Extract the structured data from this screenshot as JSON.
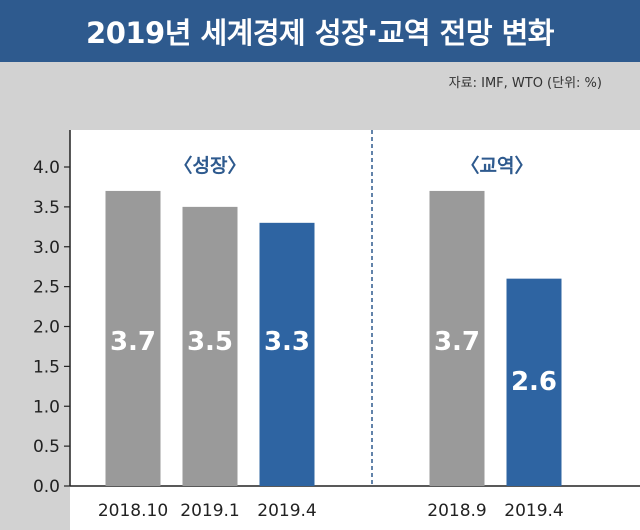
{
  "header": {
    "title": "2019년 세계경제 성장·교역 전망 변화"
  },
  "source": "자료: IMF, WTO (단위: %)",
  "chart_data": {
    "type": "bar",
    "ylim": [
      0,
      4.0
    ],
    "yticks": [
      "0.0",
      "0.5",
      "1.0",
      "1.5",
      "2.0",
      "2.5",
      "3.0",
      "3.5",
      "4.0"
    ],
    "grid": false,
    "groups": [
      {
        "label": "〈성장〉",
        "categories": [
          "2018.10",
          "2019.1",
          "2019.4"
        ],
        "values": [
          3.7,
          3.5,
          3.3
        ],
        "value_labels": [
          "3.7",
          "3.5",
          "3.3"
        ],
        "colors": [
          "#9a9a9a",
          "#9a9a9a",
          "#2e64a2"
        ]
      },
      {
        "label": "〈교역〉",
        "categories": [
          "2018.9",
          "2019.4"
        ],
        "values": [
          3.7,
          2.6
        ],
        "value_labels": [
          "3.7",
          "2.6"
        ],
        "colors": [
          "#9a9a9a",
          "#2e64a2"
        ]
      }
    ]
  }
}
